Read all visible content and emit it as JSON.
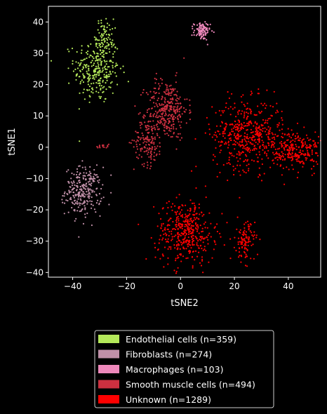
{
  "colors": {
    "background": "#000000",
    "axis": "#ffffff",
    "legend_border": "#cccccc",
    "endothelial": "#b4e85a",
    "fibroblasts": "#c090a8",
    "macrophages": "#ee88bb",
    "smooth_muscle": "#cc3040",
    "unknown": "#ff0000"
  },
  "chart_data": {
    "type": "scatter",
    "title": "",
    "xlabel": "tSNE2",
    "ylabel": "tSNE1",
    "xlim": [
      -49,
      52
    ],
    "ylim": [
      -41.5,
      45
    ],
    "xticks": [
      -40,
      -20,
      0,
      20,
      40
    ],
    "yticks": [
      -40,
      -30,
      -20,
      -10,
      0,
      10,
      20,
      30,
      40
    ],
    "xtick_labels": [
      "−40",
      "−20",
      "0",
      "20",
      "40"
    ],
    "ytick_labels": [
      "−40",
      "−30",
      "−20",
      "−10",
      "0",
      "10",
      "20",
      "30",
      "40"
    ],
    "grid": false,
    "legend_position": "below",
    "series": [
      {
        "name": "Endothelial cells (n=359)",
        "color": "#b4e85a",
        "n": 359,
        "clusters": [
          {
            "cx": -31,
            "cy": 25,
            "sx": 4.2,
            "sy": 5.5,
            "n": 300
          },
          {
            "cx": -28,
            "cy": 36,
            "sx": 1.6,
            "sy": 2.5,
            "n": 59
          }
        ]
      },
      {
        "name": "Fibroblasts (n=274)",
        "color": "#c090a8",
        "n": 274,
        "clusters": [
          {
            "cx": -36,
            "cy": -14,
            "sx": 3.4,
            "sy": 3.8,
            "n": 274
          }
        ]
      },
      {
        "name": "Macrophages (n=103)",
        "color": "#ee88bb",
        "n": 103,
        "clusters": [
          {
            "cx": 8,
            "cy": 37,
            "sx": 1.5,
            "sy": 1.4,
            "n": 103
          }
        ]
      },
      {
        "name": "Smooth muscle cells (n=494)",
        "color": "#cc3040",
        "n": 494,
        "clusters": [
          {
            "cx": -5,
            "cy": 12,
            "sx": 3.8,
            "sy": 4.8,
            "n": 330
          },
          {
            "cx": -12,
            "cy": 2,
            "sx": 2.6,
            "sy": 3.8,
            "n": 150
          },
          {
            "cx": -29,
            "cy": 0.3,
            "sx": 1.2,
            "sy": 0.4,
            "n": 14
          }
        ]
      },
      {
        "name": "Unknown (n=1289)",
        "color": "#ff0000",
        "n": 1289,
        "clusters": [
          {
            "cx": 25,
            "cy": 4,
            "sx": 6.5,
            "sy": 5.5,
            "n": 500
          },
          {
            "cx": 43,
            "cy": -1,
            "sx": 4.5,
            "sy": 3,
            "n": 260
          },
          {
            "cx": 2,
            "cy": -27,
            "sx": 5.5,
            "sy": 5,
            "n": 420
          },
          {
            "cx": 24,
            "cy": -30,
            "sx": 1.8,
            "sy": 3.2,
            "n": 109
          }
        ]
      }
    ]
  }
}
